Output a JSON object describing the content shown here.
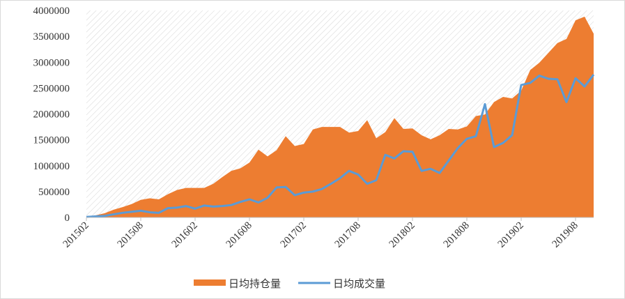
{
  "chart_data": {
    "type": "area-line",
    "categories": [
      "201502",
      null,
      null,
      null,
      null,
      null,
      "201508",
      null,
      null,
      null,
      null,
      null,
      "201602",
      null,
      null,
      null,
      null,
      null,
      "201608",
      null,
      null,
      null,
      null,
      null,
      "201702",
      null,
      null,
      null,
      null,
      null,
      "201708",
      null,
      null,
      null,
      null,
      null,
      "201802",
      null,
      null,
      null,
      null,
      null,
      "201808",
      null,
      null,
      null,
      null,
      null,
      "201902",
      null,
      null,
      null,
      null,
      null,
      "201908",
      null,
      null
    ],
    "series": [
      {
        "name": "日均持仓量",
        "kind": "area",
        "color": "#ed7d31",
        "values": [
          10000,
          40000,
          80000,
          150000,
          200000,
          260000,
          340000,
          370000,
          350000,
          450000,
          530000,
          570000,
          570000,
          570000,
          650000,
          780000,
          900000,
          950000,
          1060000,
          1310000,
          1180000,
          1300000,
          1570000,
          1380000,
          1420000,
          1700000,
          1750000,
          1750000,
          1750000,
          1640000,
          1670000,
          1880000,
          1530000,
          1650000,
          1920000,
          1710000,
          1720000,
          1590000,
          1510000,
          1590000,
          1710000,
          1700000,
          1760000,
          1960000,
          1990000,
          2230000,
          2330000,
          2300000,
          2450000,
          2850000,
          2990000,
          3180000,
          3370000,
          3450000,
          3810000,
          3880000,
          3550000
        ]
      },
      {
        "name": "日均成交量",
        "kind": "line",
        "color": "#5b9bd5",
        "values": [
          10000,
          20000,
          30000,
          60000,
          90000,
          110000,
          130000,
          100000,
          90000,
          180000,
          190000,
          220000,
          170000,
          230000,
          210000,
          220000,
          240000,
          300000,
          350000,
          290000,
          380000,
          580000,
          590000,
          430000,
          480000,
          500000,
          550000,
          650000,
          760000,
          900000,
          830000,
          650000,
          720000,
          1210000,
          1140000,
          1280000,
          1270000,
          900000,
          940000,
          860000,
          1100000,
          1340000,
          1520000,
          1570000,
          2190000,
          1360000,
          1440000,
          1590000,
          2560000,
          2600000,
          2740000,
          2680000,
          2670000,
          2230000,
          2690000,
          2530000,
          2760000
        ]
      }
    ],
    "ylim": [
      0,
      4000000
    ],
    "yticks": [
      0,
      500000,
      1000000,
      1500000,
      2000000,
      2500000,
      3000000,
      3500000,
      4000000
    ],
    "grid": false
  }
}
